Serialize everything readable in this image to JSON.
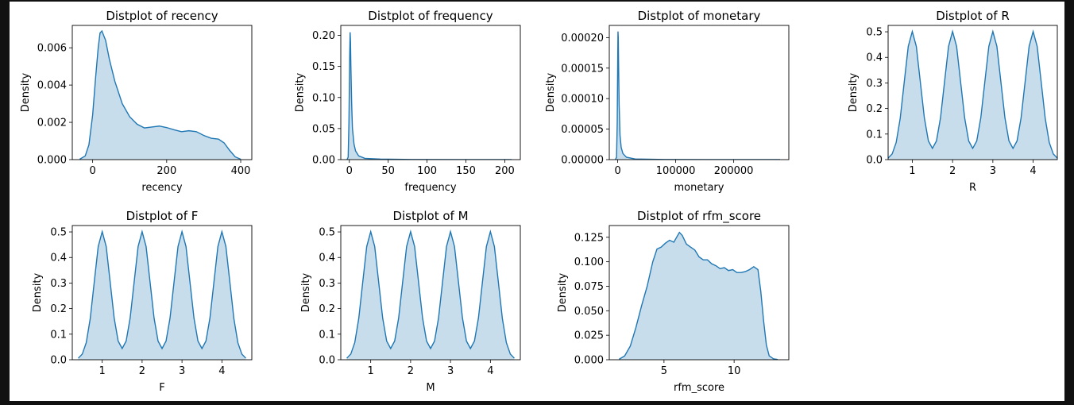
{
  "figure": {
    "background": "#ffffff",
    "frame": "#111111"
  },
  "style": {
    "line_color": "#1f77b4",
    "fill_color": "#1f77b4",
    "fill_opacity": 0.25
  },
  "chart_data": [
    {
      "type": "area",
      "title": "Distplot of recency",
      "xlabel": "recency",
      "ylabel": "Density",
      "xlim": [
        -55,
        430
      ],
      "ylim": [
        0,
        0.0072
      ],
      "xticks": [
        0,
        200,
        400
      ],
      "xtick_labels": [
        "0",
        "200",
        "400"
      ],
      "yticks": [
        0,
        0.002,
        0.004,
        0.006
      ],
      "ytick_labels": [
        "0.000",
        "0.002",
        "0.004",
        "0.006"
      ],
      "series": [
        {
          "x": [
            -35,
            -20,
            -10,
            0,
            8,
            15,
            20,
            25,
            35,
            45,
            60,
            80,
            100,
            120,
            140,
            160,
            180,
            200,
            220,
            240,
            260,
            280,
            300,
            320,
            340,
            355,
            370,
            385,
            400
          ],
          "y": [
            2e-05,
            0.0002,
            0.0008,
            0.0024,
            0.0044,
            0.006,
            0.0068,
            0.0069,
            0.0064,
            0.0054,
            0.0042,
            0.003,
            0.0023,
            0.0019,
            0.0017,
            0.00175,
            0.0018,
            0.00172,
            0.0016,
            0.0015,
            0.00155,
            0.0015,
            0.0013,
            0.00115,
            0.0011,
            0.0009,
            0.0005,
            0.00015,
            2e-05
          ]
        }
      ]
    },
    {
      "type": "area",
      "title": "Distplot of frequency",
      "xlabel": "frequency",
      "ylabel": "Density",
      "xlim": [
        -11,
        220
      ],
      "ylim": [
        0,
        0.216
      ],
      "xticks": [
        0,
        50,
        100,
        150,
        200
      ],
      "xtick_labels": [
        "0",
        "50",
        "100",
        "150",
        "200"
      ],
      "yticks": [
        0,
        0.05,
        0.1,
        0.15,
        0.2
      ],
      "ytick_labels": [
        "0.00",
        "0.05",
        "0.10",
        "0.15",
        "0.20"
      ],
      "series": [
        {
          "x": [
            -3,
            -1.5,
            -0.5,
            0.5,
            1,
            1.5,
            2,
            3,
            4,
            6,
            8,
            12,
            20,
            40,
            80,
            150,
            209
          ],
          "y": [
            0,
            0.004,
            0.06,
            0.17,
            0.205,
            0.19,
            0.15,
            0.09,
            0.05,
            0.025,
            0.014,
            0.006,
            0.002,
            0.0008,
            0.0003,
            0.0001,
            0
          ]
        }
      ]
    },
    {
      "type": "area",
      "title": "Distplot of monetary",
      "xlabel": "monetary",
      "ylabel": "Density",
      "xlim": [
        -14500,
        295000
      ],
      "ylim": [
        0,
        0.00022
      ],
      "xticks": [
        0,
        100000,
        200000
      ],
      "xtick_labels": [
        "0",
        "100000",
        "200000"
      ],
      "yticks": [
        0,
        5e-05,
        0.0001,
        0.00015,
        0.0002
      ],
      "ytick_labels": [
        "0.00000",
        "0.00005",
        "0.00010",
        "0.00015",
        "0.00020"
      ],
      "series": [
        {
          "x": [
            -4000,
            -2000,
            -800,
            0,
            500,
            1000,
            1600,
            2500,
            4000,
            6000,
            9000,
            15000,
            30000,
            80000,
            160000,
            280000
          ],
          "y": [
            0,
            4e-06,
            6e-05,
            0.00016,
            0.00021,
            0.0002,
            0.00015,
            9e-05,
            4e-05,
            2e-05,
            1e-05,
            4e-06,
            1e-06,
            3e-07,
            1e-07,
            0
          ]
        }
      ]
    },
    {
      "type": "area",
      "title": "Distplot of R",
      "xlabel": "R",
      "ylabel": "Density",
      "xlim": [
        0.4,
        4.6
      ],
      "ylim": [
        0,
        0.525
      ],
      "xticks": [
        1,
        2,
        3,
        4
      ],
      "xtick_labels": [
        "1",
        "2",
        "3",
        "4"
      ],
      "yticks": [
        0,
        0.1,
        0.2,
        0.3,
        0.4,
        0.5
      ],
      "ytick_labels": [
        "0.0",
        "0.1",
        "0.2",
        "0.3",
        "0.4",
        "0.5"
      ],
      "series": [
        {
          "x": [
            0.4,
            0.5,
            0.6,
            0.7,
            0.8,
            0.9,
            1.0,
            1.1,
            1.2,
            1.3,
            1.4,
            1.5,
            1.6,
            1.7,
            1.8,
            1.9,
            2.0,
            2.1,
            2.2,
            2.3,
            2.4,
            2.5,
            2.6,
            2.7,
            2.8,
            2.9,
            3.0,
            3.1,
            3.2,
            3.3,
            3.4,
            3.5,
            3.6,
            3.7,
            3.8,
            3.9,
            4.0,
            4.1,
            4.2,
            4.3,
            4.4,
            4.5,
            4.6
          ],
          "y": [
            0.006,
            0.022,
            0.067,
            0.161,
            0.303,
            0.443,
            0.501,
            0.443,
            0.303,
            0.163,
            0.073,
            0.044,
            0.073,
            0.163,
            0.303,
            0.443,
            0.501,
            0.443,
            0.303,
            0.163,
            0.073,
            0.044,
            0.073,
            0.163,
            0.303,
            0.443,
            0.501,
            0.443,
            0.303,
            0.163,
            0.073,
            0.044,
            0.073,
            0.163,
            0.303,
            0.443,
            0.501,
            0.443,
            0.303,
            0.161,
            0.067,
            0.022,
            0.006
          ]
        }
      ]
    },
    {
      "type": "area",
      "title": "Distplot of F",
      "xlabel": "F",
      "ylabel": "Density",
      "xlim": [
        0.25,
        4.75
      ],
      "ylim": [
        0,
        0.525
      ],
      "xticks": [
        1,
        2,
        3,
        4
      ],
      "xtick_labels": [
        "1",
        "2",
        "3",
        "4"
      ],
      "yticks": [
        0,
        0.1,
        0.2,
        0.3,
        0.4,
        0.5
      ],
      "ytick_labels": [
        "0.0",
        "0.1",
        "0.2",
        "0.3",
        "0.4",
        "0.5"
      ],
      "series": [
        {
          "x": [
            0.4,
            0.5,
            0.6,
            0.7,
            0.8,
            0.9,
            1.0,
            1.1,
            1.2,
            1.3,
            1.4,
            1.5,
            1.6,
            1.7,
            1.8,
            1.9,
            2.0,
            2.1,
            2.2,
            2.3,
            2.4,
            2.5,
            2.6,
            2.7,
            2.8,
            2.9,
            3.0,
            3.1,
            3.2,
            3.3,
            3.4,
            3.5,
            3.6,
            3.7,
            3.8,
            3.9,
            4.0,
            4.1,
            4.2,
            4.3,
            4.4,
            4.5,
            4.6
          ],
          "y": [
            0.006,
            0.022,
            0.067,
            0.161,
            0.303,
            0.443,
            0.501,
            0.443,
            0.303,
            0.163,
            0.073,
            0.044,
            0.073,
            0.163,
            0.303,
            0.443,
            0.501,
            0.443,
            0.303,
            0.163,
            0.073,
            0.044,
            0.073,
            0.163,
            0.303,
            0.443,
            0.501,
            0.443,
            0.303,
            0.163,
            0.073,
            0.044,
            0.073,
            0.163,
            0.303,
            0.443,
            0.501,
            0.443,
            0.303,
            0.161,
            0.067,
            0.022,
            0.006
          ]
        }
      ]
    },
    {
      "type": "area",
      "title": "Distplot of M",
      "xlabel": "M",
      "ylabel": "Density",
      "xlim": [
        0.25,
        4.75
      ],
      "ylim": [
        0,
        0.525
      ],
      "xticks": [
        1,
        2,
        3,
        4
      ],
      "xtick_labels": [
        "1",
        "2",
        "3",
        "4"
      ],
      "yticks": [
        0,
        0.1,
        0.2,
        0.3,
        0.4,
        0.5
      ],
      "ytick_labels": [
        "0.0",
        "0.1",
        "0.2",
        "0.3",
        "0.4",
        "0.5"
      ],
      "series": [
        {
          "x": [
            0.4,
            0.5,
            0.6,
            0.7,
            0.8,
            0.9,
            1.0,
            1.1,
            1.2,
            1.3,
            1.4,
            1.5,
            1.6,
            1.7,
            1.8,
            1.9,
            2.0,
            2.1,
            2.2,
            2.3,
            2.4,
            2.5,
            2.6,
            2.7,
            2.8,
            2.9,
            3.0,
            3.1,
            3.2,
            3.3,
            3.4,
            3.5,
            3.6,
            3.7,
            3.8,
            3.9,
            4.0,
            4.1,
            4.2,
            4.3,
            4.4,
            4.5,
            4.6
          ],
          "y": [
            0.006,
            0.022,
            0.067,
            0.161,
            0.303,
            0.443,
            0.501,
            0.443,
            0.303,
            0.163,
            0.073,
            0.044,
            0.073,
            0.163,
            0.303,
            0.443,
            0.501,
            0.443,
            0.303,
            0.163,
            0.073,
            0.044,
            0.073,
            0.163,
            0.303,
            0.443,
            0.501,
            0.443,
            0.303,
            0.163,
            0.073,
            0.044,
            0.073,
            0.163,
            0.303,
            0.443,
            0.501,
            0.443,
            0.303,
            0.161,
            0.067,
            0.022,
            0.006
          ]
        }
      ]
    },
    {
      "type": "area",
      "title": "Distplot of rfm_score",
      "xlabel": "rfm_score",
      "ylabel": "Density",
      "xlim": [
        1.1,
        13.9
      ],
      "ylim": [
        0,
        0.137
      ],
      "xticks": [
        5,
        10
      ],
      "xtick_labels": [
        "5",
        "10"
      ],
      "yticks": [
        0,
        0.025,
        0.05,
        0.075,
        0.1,
        0.125
      ],
      "ytick_labels": [
        "0.000",
        "0.025",
        "0.050",
        "0.075",
        "0.100",
        "0.125"
      ],
      "series": [
        {
          "x": [
            1.8,
            2.2,
            2.6,
            3.0,
            3.4,
            3.8,
            4.2,
            4.5,
            4.8,
            5.1,
            5.4,
            5.7,
            5.9,
            6.1,
            6.3,
            6.6,
            6.9,
            7.2,
            7.5,
            7.8,
            8.1,
            8.4,
            8.7,
            9.0,
            9.3,
            9.6,
            9.9,
            10.2,
            10.5,
            10.8,
            11.1,
            11.4,
            11.7,
            11.9,
            12.1,
            12.3,
            12.5,
            12.8,
            13.1
          ],
          "y": [
            0.0005,
            0.004,
            0.014,
            0.033,
            0.055,
            0.075,
            0.1,
            0.113,
            0.115,
            0.119,
            0.122,
            0.12,
            0.125,
            0.13,
            0.127,
            0.118,
            0.115,
            0.112,
            0.105,
            0.102,
            0.102,
            0.098,
            0.096,
            0.093,
            0.094,
            0.091,
            0.092,
            0.089,
            0.089,
            0.09,
            0.092,
            0.095,
            0.092,
            0.07,
            0.04,
            0.015,
            0.004,
            0.001,
            0.0002
          ]
        }
      ]
    }
  ]
}
